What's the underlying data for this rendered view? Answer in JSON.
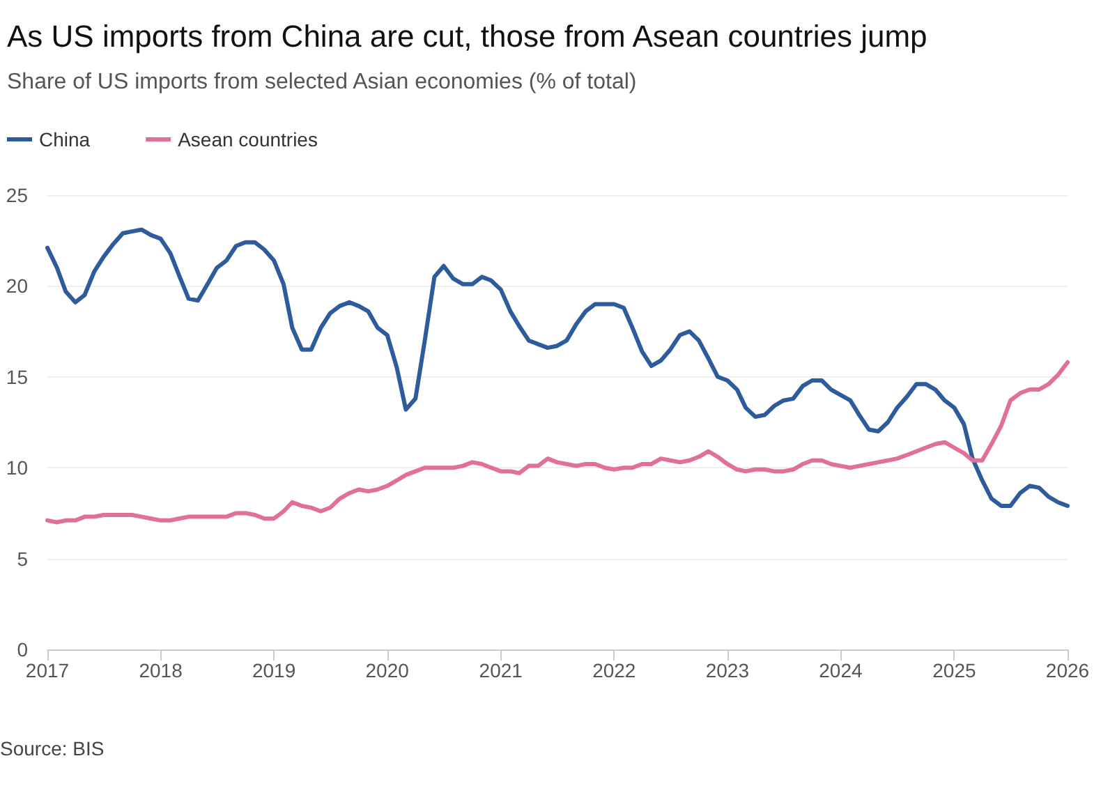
{
  "chart_data": {
    "type": "line",
    "title": "As US imports from China are cut, those from Asean countries jump",
    "subtitle": "Share of US imports from selected Asian economies (% of total)",
    "x": [
      "2017-01",
      "2017-02",
      "2017-03",
      "2017-04",
      "2017-05",
      "2017-06",
      "2017-07",
      "2017-08",
      "2017-09",
      "2017-10",
      "2017-11",
      "2017-12",
      "2018-01",
      "2018-02",
      "2018-03",
      "2018-04",
      "2018-05",
      "2018-06",
      "2018-07",
      "2018-08",
      "2018-09",
      "2018-10",
      "2018-11",
      "2018-12",
      "2019-01",
      "2019-02",
      "2019-03",
      "2019-04",
      "2019-05",
      "2019-06",
      "2019-07",
      "2019-08",
      "2019-09",
      "2019-10",
      "2019-11",
      "2019-12",
      "2020-01",
      "2020-02",
      "2020-03",
      "2020-04",
      "2020-05",
      "2020-06",
      "2020-07",
      "2020-08",
      "2020-09",
      "2020-10",
      "2020-11",
      "2020-12",
      "2021-01",
      "2021-02",
      "2021-03",
      "2021-04",
      "2021-05",
      "2021-06",
      "2021-07",
      "2021-08",
      "2021-09",
      "2021-10",
      "2021-11",
      "2021-12",
      "2022-01",
      "2022-02",
      "2022-03",
      "2022-04",
      "2022-05",
      "2022-06",
      "2022-07",
      "2022-08",
      "2022-09",
      "2022-10",
      "2022-11",
      "2022-12",
      "2023-01",
      "2023-02",
      "2023-03",
      "2023-04",
      "2023-05",
      "2023-06",
      "2023-07",
      "2023-08",
      "2023-09",
      "2023-10",
      "2023-11",
      "2023-12",
      "2024-01",
      "2024-02",
      "2024-03",
      "2024-04",
      "2024-05",
      "2024-06",
      "2024-07",
      "2024-08",
      "2024-09",
      "2024-10",
      "2024-11",
      "2024-12",
      "2025-01",
      "2025-02",
      "2025-03",
      "2025-04",
      "2025-05",
      "2025-06",
      "2025-07",
      "2025-08",
      "2025-09",
      "2025-10",
      "2025-11",
      "2025-12",
      "2026-01"
    ],
    "series": [
      {
        "name": "China",
        "color": "#2e5b9c",
        "values": [
          22.1,
          21.0,
          19.7,
          19.1,
          19.5,
          20.8,
          21.6,
          22.3,
          22.9,
          23.0,
          23.1,
          22.8,
          22.6,
          21.8,
          20.6,
          19.3,
          19.2,
          20.1,
          21.0,
          21.4,
          22.2,
          22.4,
          22.4,
          22.0,
          21.4,
          20.1,
          17.7,
          16.5,
          16.5,
          17.7,
          18.5,
          18.9,
          19.1,
          18.9,
          18.6,
          17.7,
          17.3,
          15.5,
          13.2,
          13.8,
          17.0,
          20.5,
          21.1,
          20.4,
          20.1,
          20.1,
          20.5,
          20.3,
          19.8,
          18.6,
          17.8,
          17.0,
          16.8,
          16.6,
          16.7,
          17.0,
          17.9,
          18.6,
          19.0,
          19.0,
          19.0,
          18.8,
          17.7,
          16.4,
          15.6,
          15.9,
          16.5,
          17.3,
          17.5,
          17.0,
          16.0,
          15.0,
          14.8,
          14.3,
          13.3,
          12.8,
          12.9,
          13.4,
          13.7,
          13.8,
          14.5,
          14.8,
          14.8,
          14.3,
          14.0,
          13.7,
          12.9,
          12.1,
          12.0,
          12.5,
          13.3,
          13.9,
          14.6,
          14.6,
          14.3,
          13.7,
          13.3,
          12.4,
          10.5,
          9.3,
          8.3,
          7.9,
          7.9,
          8.6,
          9.0,
          8.9,
          8.4,
          8.1,
          7.9
        ]
      },
      {
        "name": "Asean countries",
        "color": "#e0709a",
        "values": [
          7.1,
          7.0,
          7.1,
          7.1,
          7.3,
          7.3,
          7.4,
          7.4,
          7.4,
          7.4,
          7.3,
          7.2,
          7.1,
          7.1,
          7.2,
          7.3,
          7.3,
          7.3,
          7.3,
          7.3,
          7.5,
          7.5,
          7.4,
          7.2,
          7.2,
          7.6,
          8.1,
          7.9,
          7.8,
          7.6,
          7.8,
          8.3,
          8.6,
          8.8,
          8.7,
          8.8,
          9.0,
          9.3,
          9.6,
          9.8,
          10.0,
          10.0,
          10.0,
          10.0,
          10.1,
          10.3,
          10.2,
          10.0,
          9.8,
          9.8,
          9.7,
          10.1,
          10.1,
          10.5,
          10.3,
          10.2,
          10.1,
          10.2,
          10.2,
          10.0,
          9.9,
          10.0,
          10.0,
          10.2,
          10.2,
          10.5,
          10.4,
          10.3,
          10.4,
          10.6,
          10.9,
          10.6,
          10.2,
          9.9,
          9.8,
          9.9,
          9.9,
          9.8,
          9.8,
          9.9,
          10.2,
          10.4,
          10.4,
          10.2,
          10.1,
          10.0,
          10.1,
          10.2,
          10.3,
          10.4,
          10.5,
          10.7,
          10.9,
          11.1,
          11.3,
          11.4,
          11.1,
          10.8,
          10.4,
          10.4,
          11.3,
          12.3,
          13.7,
          14.1,
          14.3,
          14.3,
          14.6,
          15.1,
          15.8
        ]
      }
    ],
    "xlim": [
      "2017-01",
      "2026-01"
    ],
    "xticks": [
      "2017",
      "2018",
      "2019",
      "2020",
      "2021",
      "2022",
      "2023",
      "2024",
      "2025",
      "2026"
    ],
    "ylim": [
      0,
      25
    ],
    "yticks": [
      0,
      5,
      10,
      15,
      20,
      25
    ],
    "grid": "y",
    "legend": "top left",
    "marker": "none",
    "line_style": "solid",
    "annotations": [
      "Source: BIS"
    ]
  }
}
